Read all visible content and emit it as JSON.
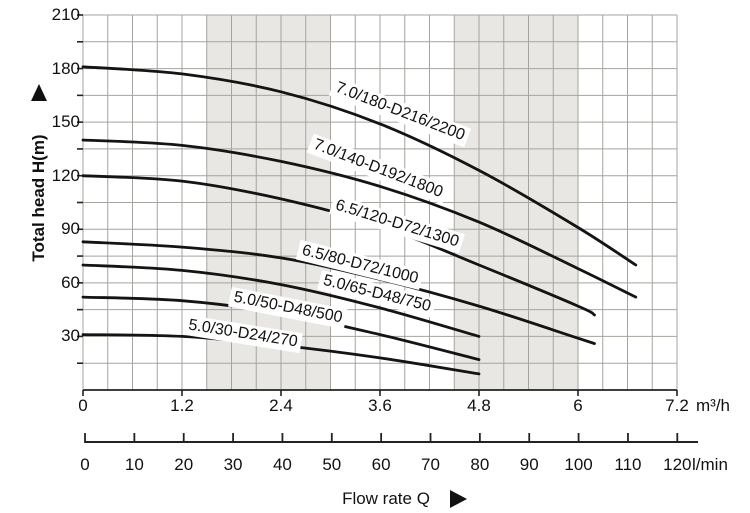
{
  "chart_data": {
    "type": "line",
    "xlabel": "Flow rate Q",
    "ylabel": "Total head H(m)",
    "x_axis_primary": {
      "unit": "m³/h",
      "tick_labels": [
        "0",
        "1.2",
        "2.4",
        "3.6",
        "4.8",
        "6",
        "7.2"
      ],
      "tick_values": [
        0,
        1.2,
        2.4,
        3.6,
        4.8,
        6,
        7.2
      ],
      "range": [
        0,
        7.2
      ]
    },
    "x_axis_secondary": {
      "unit": "l/min",
      "tick_values": [
        0,
        10,
        20,
        30,
        40,
        50,
        60,
        70,
        80,
        90,
        100,
        110,
        120
      ],
      "range": [
        0,
        120
      ]
    },
    "y_axis": {
      "tick_values": [
        210,
        180,
        150,
        120,
        90,
        60,
        30
      ],
      "range": [
        0,
        210
      ],
      "minor_step": 15
    },
    "grid": {
      "on": true,
      "x_step": 0.3,
      "y_step": 15
    },
    "shaded_bands_x": [
      [
        1.5,
        3.0
      ],
      [
        4.5,
        6.0
      ]
    ],
    "series": [
      {
        "name": "7.0/180-D216/2200",
        "points": [
          [
            0,
            181
          ],
          [
            1.2,
            177
          ],
          [
            2.4,
            167
          ],
          [
            3.6,
            149
          ],
          [
            4.8,
            123
          ],
          [
            6,
            91
          ],
          [
            6.7,
            70
          ]
        ]
      },
      {
        "name": "7.0/140-D192/1800",
        "points": [
          [
            0,
            140
          ],
          [
            1.2,
            137
          ],
          [
            2.4,
            128
          ],
          [
            3.6,
            114
          ],
          [
            4.8,
            94
          ],
          [
            6,
            68
          ],
          [
            6.7,
            52
          ]
        ]
      },
      {
        "name": "6.5/120-D72/1300",
        "points": [
          [
            0,
            120
          ],
          [
            1.2,
            117
          ],
          [
            2.4,
            107
          ],
          [
            3.6,
            92
          ],
          [
            4.8,
            70
          ],
          [
            6,
            47
          ],
          [
            6.2,
            42
          ]
        ]
      },
      {
        "name": "6.5/80-D72/1000",
        "points": [
          [
            0,
            83
          ],
          [
            1.2,
            80
          ],
          [
            2.4,
            74
          ],
          [
            3.6,
            62
          ],
          [
            4.8,
            47
          ],
          [
            6,
            29
          ],
          [
            6.2,
            26
          ]
        ]
      },
      {
        "name": "5.0/65-D48/750",
        "points": [
          [
            0,
            70
          ],
          [
            1.2,
            67
          ],
          [
            2.4,
            59
          ],
          [
            3.6,
            46
          ],
          [
            4.8,
            30
          ]
        ]
      },
      {
        "name": "5.0/50-D48/500",
        "points": [
          [
            0,
            52
          ],
          [
            1.2,
            50
          ],
          [
            2.4,
            43
          ],
          [
            3.6,
            31
          ],
          [
            4.8,
            17
          ]
        ]
      },
      {
        "name": "5.0/30-D24/270",
        "points": [
          [
            0,
            31
          ],
          [
            1.2,
            30
          ],
          [
            2.4,
            25
          ],
          [
            3.6,
            18
          ],
          [
            4.8,
            9
          ]
        ]
      }
    ],
    "colors": {
      "curve": "#141414",
      "grid": "#a7a39e",
      "band": "#e9e7e4",
      "axis": "#222222",
      "text": "#111111",
      "background": "#ffffff"
    }
  },
  "icons": {
    "y_axis_marker": "triangle-up-icon",
    "x_axis_marker": "triangle-right-icon"
  }
}
